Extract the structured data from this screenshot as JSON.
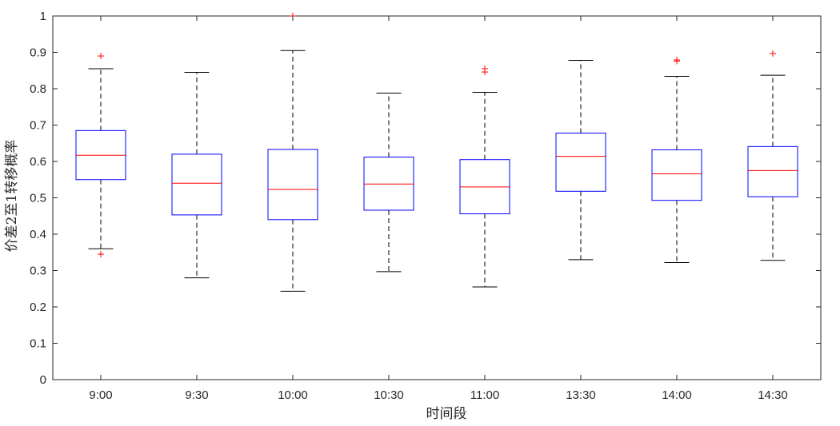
{
  "chart_data": {
    "type": "box",
    "title": "",
    "xlabel": "时间段",
    "ylabel": "价差2至1转移概率",
    "ylim": [
      0,
      1
    ],
    "yticks": [
      "0",
      "0.1",
      "0.2",
      "0.3",
      "0.4",
      "0.5",
      "0.6",
      "0.7",
      "0.8",
      "0.9",
      "1"
    ],
    "grid": false,
    "legend": "none",
    "categories": [
      "9:00",
      "9:30",
      "10:00",
      "10:30",
      "11:00",
      "13:30",
      "14:00",
      "14:30"
    ],
    "boxes": [
      {
        "category": "9:00",
        "whisker_low": 0.36,
        "q1": 0.55,
        "median": 0.617,
        "q3": 0.685,
        "whisker_high": 0.855,
        "outliers": [
          0.89,
          0.345
        ]
      },
      {
        "category": "9:30",
        "whisker_low": 0.28,
        "q1": 0.453,
        "median": 0.54,
        "q3": 0.62,
        "whisker_high": 0.845,
        "outliers": []
      },
      {
        "category": "10:00",
        "whisker_low": 0.243,
        "q1": 0.44,
        "median": 0.523,
        "q3": 0.633,
        "whisker_high": 0.905,
        "outliers": [
          1.0
        ]
      },
      {
        "category": "10:30",
        "whisker_low": 0.297,
        "q1": 0.466,
        "median": 0.538,
        "q3": 0.612,
        "whisker_high": 0.788,
        "outliers": []
      },
      {
        "category": "11:00",
        "whisker_low": 0.255,
        "q1": 0.456,
        "median": 0.53,
        "q3": 0.605,
        "whisker_high": 0.79,
        "outliers": [
          0.855,
          0.846
        ]
      },
      {
        "category": "13:30",
        "whisker_low": 0.33,
        "q1": 0.518,
        "median": 0.614,
        "q3": 0.678,
        "whisker_high": 0.878,
        "outliers": []
      },
      {
        "category": "14:00",
        "whisker_low": 0.322,
        "q1": 0.493,
        "median": 0.566,
        "q3": 0.632,
        "whisker_high": 0.834,
        "outliers": [
          0.879,
          0.876
        ]
      },
      {
        "category": "14:30",
        "whisker_low": 0.328,
        "q1": 0.503,
        "median": 0.575,
        "q3": 0.641,
        "whisker_high": 0.837,
        "outliers": [
          0.897
        ]
      }
    ],
    "colors": {
      "box": "#0000ff",
      "median": "#ff0000",
      "whisker": "#000000",
      "outlier": "#ff0000",
      "axis": "#262626"
    }
  }
}
